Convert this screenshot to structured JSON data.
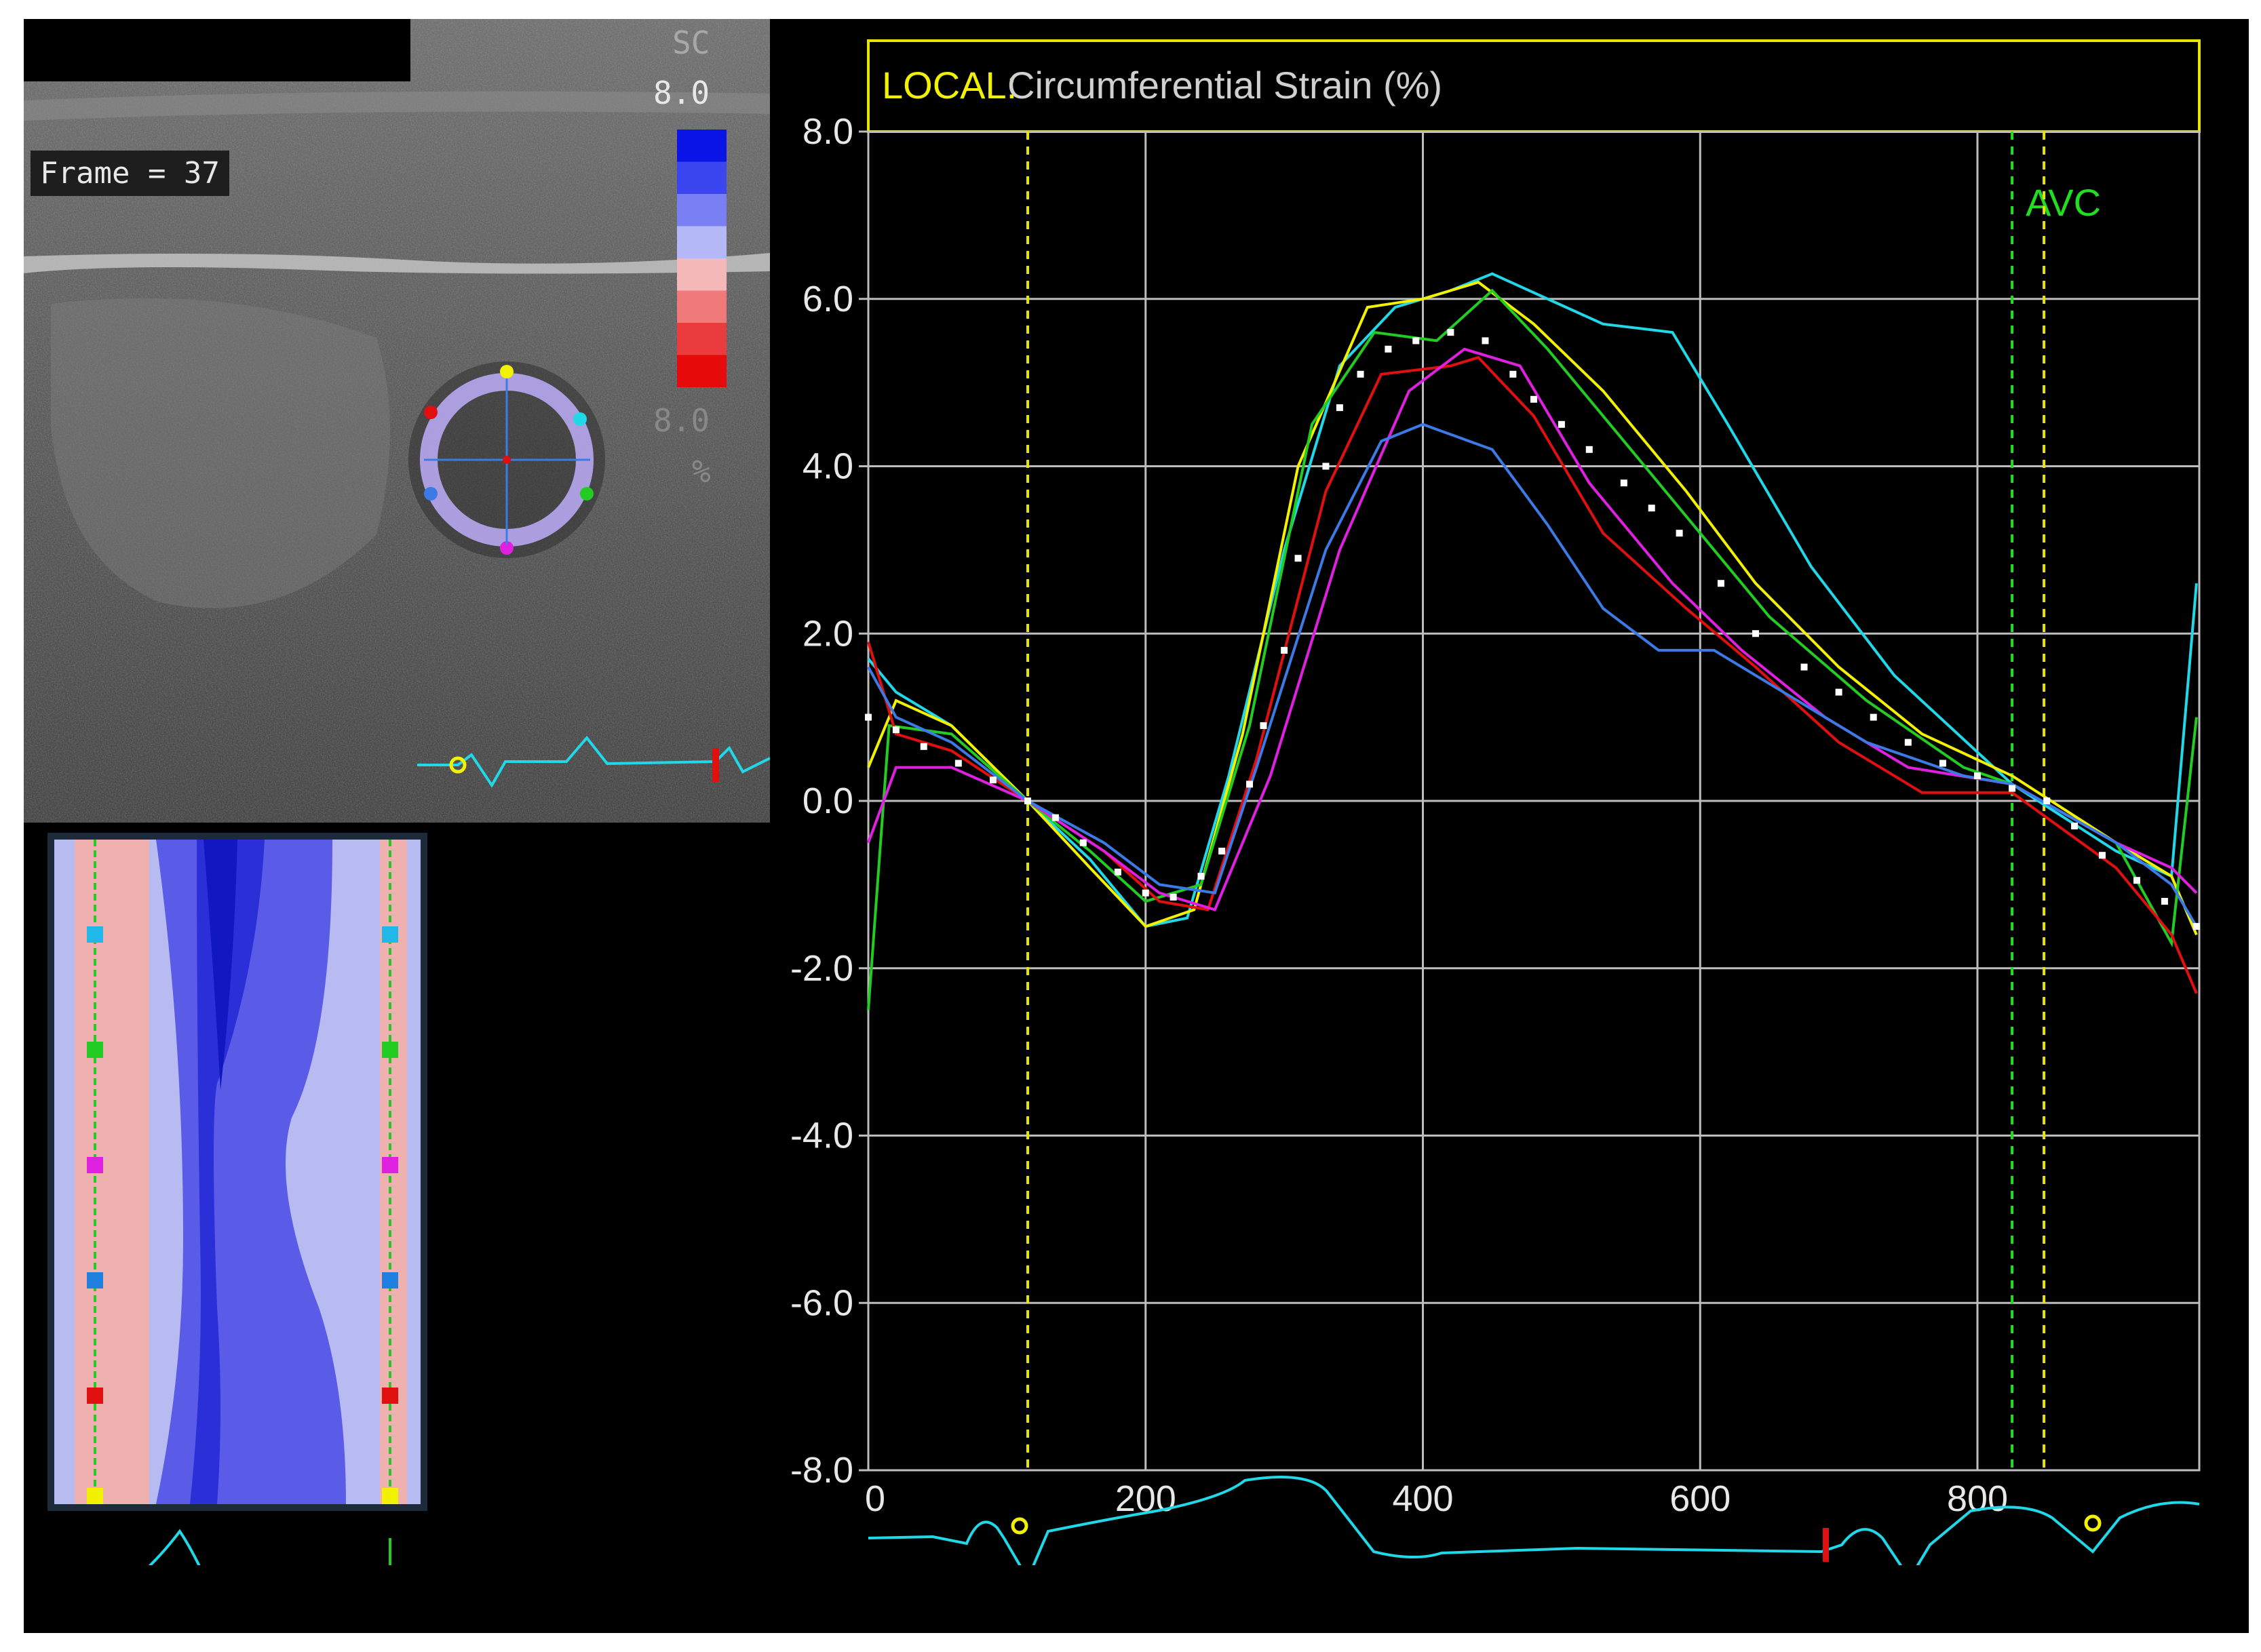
{
  "echo": {
    "sc_label": "SC",
    "scale_top": "8.0",
    "scale_bottom": "8.0",
    "unit": "%",
    "frame_label": "Frame = 37",
    "colorbar_colors": [
      "#0a14e6",
      "#3c46f0",
      "#7a80f4",
      "#b4b8f6",
      "#f4b8b8",
      "#f07a7a",
      "#ea3c3c",
      "#e60a0a"
    ]
  },
  "mmode": {
    "marker_colors_left": [
      "#20b8e8",
      "#22cc22",
      "#e020e0",
      "#2080e0",
      "#e01010",
      "#f2f200"
    ],
    "marker_colors_right": [
      "#20b8e8",
      "#22cc22",
      "#e020e0",
      "#2080e0",
      "#e01010",
      "#f2f200"
    ]
  },
  "chart_data": {
    "type": "line",
    "title_prefix": "LOCAL:",
    "title": "Circumferential Strain (%)",
    "xlim": [
      0,
      960
    ],
    "ylim": [
      -8,
      8
    ],
    "x_ticks": [
      0,
      200,
      400,
      600,
      800
    ],
    "x_tick_labels": [
      "0",
      "200",
      "400",
      "600",
      "800"
    ],
    "y_ticks": [
      8,
      6,
      4,
      2,
      0,
      -2,
      -4,
      -6,
      -8
    ],
    "y_tick_labels": [
      "8.0",
      "6.0",
      "4.0",
      "2.0",
      "0.0",
      "-2.0",
      "-4.0",
      "-6.0",
      "-8.0"
    ],
    "grid": true,
    "markers": [
      {
        "x": 115,
        "color": "#e6e600"
      },
      {
        "x": 825,
        "color": "#22dd22",
        "label": "AVC"
      },
      {
        "x": 848,
        "color": "#e6e600"
      }
    ],
    "series": [
      {
        "color": "#20d8e8",
        "style": "line",
        "points": [
          [
            0,
            1.7
          ],
          [
            20,
            1.3
          ],
          [
            60,
            0.9
          ],
          [
            115,
            0
          ],
          [
            160,
            -0.7
          ],
          [
            200,
            -1.5
          ],
          [
            230,
            -1.4
          ],
          [
            260,
            0.3
          ],
          [
            300,
            3.0
          ],
          [
            340,
            5.2
          ],
          [
            380,
            5.9
          ],
          [
            420,
            6.1
          ],
          [
            450,
            6.3
          ],
          [
            490,
            6.0
          ],
          [
            530,
            5.7
          ],
          [
            580,
            5.6
          ],
          [
            620,
            4.5
          ],
          [
            680,
            2.8
          ],
          [
            740,
            1.5
          ],
          [
            825,
            0.2
          ],
          [
            900,
            -0.6
          ],
          [
            940,
            -0.9
          ],
          [
            958,
            2.6
          ]
        ]
      },
      {
        "color": "#f2f200",
        "style": "line",
        "points": [
          [
            0,
            0.4
          ],
          [
            20,
            1.2
          ],
          [
            60,
            0.9
          ],
          [
            115,
            0
          ],
          [
            160,
            -0.8
          ],
          [
            200,
            -1.5
          ],
          [
            235,
            -1.3
          ],
          [
            270,
            0.8
          ],
          [
            310,
            4.0
          ],
          [
            360,
            5.9
          ],
          [
            400,
            6.0
          ],
          [
            440,
            6.2
          ],
          [
            480,
            5.7
          ],
          [
            530,
            4.9
          ],
          [
            590,
            3.7
          ],
          [
            640,
            2.6
          ],
          [
            700,
            1.6
          ],
          [
            760,
            0.8
          ],
          [
            825,
            0.3
          ],
          [
            900,
            -0.5
          ],
          [
            940,
            -0.9
          ],
          [
            958,
            -1.6
          ]
        ]
      },
      {
        "color": "#22cc22",
        "style": "line",
        "points": [
          [
            0,
            -2.5
          ],
          [
            15,
            0.9
          ],
          [
            60,
            0.8
          ],
          [
            115,
            0
          ],
          [
            160,
            -0.6
          ],
          [
            200,
            -1.2
          ],
          [
            240,
            -1.0
          ],
          [
            275,
            0.9
          ],
          [
            320,
            4.5
          ],
          [
            365,
            5.6
          ],
          [
            410,
            5.5
          ],
          [
            450,
            6.1
          ],
          [
            490,
            5.4
          ],
          [
            550,
            4.2
          ],
          [
            600,
            3.2
          ],
          [
            650,
            2.2
          ],
          [
            720,
            1.2
          ],
          [
            790,
            0.4
          ],
          [
            825,
            0.2
          ],
          [
            900,
            -0.5
          ],
          [
            940,
            -1.7
          ],
          [
            958,
            1.0
          ]
        ]
      },
      {
        "color": "#e01010",
        "style": "line",
        "points": [
          [
            0,
            1.9
          ],
          [
            20,
            0.8
          ],
          [
            60,
            0.6
          ],
          [
            115,
            0
          ],
          [
            170,
            -0.6
          ],
          [
            210,
            -1.2
          ],
          [
            245,
            -1.3
          ],
          [
            280,
            0.5
          ],
          [
            330,
            3.7
          ],
          [
            370,
            5.1
          ],
          [
            420,
            5.2
          ],
          [
            440,
            5.3
          ],
          [
            480,
            4.6
          ],
          [
            530,
            3.2
          ],
          [
            590,
            2.3
          ],
          [
            640,
            1.6
          ],
          [
            700,
            0.7
          ],
          [
            760,
            0.1
          ],
          [
            825,
            0.1
          ],
          [
            900,
            -0.8
          ],
          [
            940,
            -1.6
          ],
          [
            958,
            -2.3
          ]
        ]
      },
      {
        "color": "#e020e0",
        "style": "line",
        "points": [
          [
            0,
            -0.5
          ],
          [
            20,
            0.4
          ],
          [
            60,
            0.4
          ],
          [
            115,
            0
          ],
          [
            170,
            -0.6
          ],
          [
            210,
            -1.1
          ],
          [
            250,
            -1.3
          ],
          [
            290,
            0.3
          ],
          [
            340,
            3.0
          ],
          [
            390,
            4.9
          ],
          [
            430,
            5.4
          ],
          [
            470,
            5.2
          ],
          [
            520,
            3.8
          ],
          [
            580,
            2.6
          ],
          [
            630,
            1.8
          ],
          [
            690,
            1.0
          ],
          [
            750,
            0.4
          ],
          [
            825,
            0.2
          ],
          [
            900,
            -0.5
          ],
          [
            940,
            -0.8
          ],
          [
            958,
            -1.1
          ]
        ]
      },
      {
        "color": "#3c7ae6",
        "style": "line",
        "points": [
          [
            0,
            1.6
          ],
          [
            20,
            1.0
          ],
          [
            60,
            0.7
          ],
          [
            115,
            0
          ],
          [
            170,
            -0.5
          ],
          [
            210,
            -1.0
          ],
          [
            250,
            -1.1
          ],
          [
            280,
            0.4
          ],
          [
            330,
            3.0
          ],
          [
            370,
            4.3
          ],
          [
            400,
            4.5
          ],
          [
            450,
            4.2
          ],
          [
            490,
            3.3
          ],
          [
            530,
            2.3
          ],
          [
            570,
            1.8
          ],
          [
            610,
            1.8
          ],
          [
            660,
            1.3
          ],
          [
            720,
            0.7
          ],
          [
            790,
            0.3
          ],
          [
            825,
            0.2
          ],
          [
            900,
            -0.5
          ],
          [
            940,
            -1.0
          ],
          [
            958,
            -1.5
          ]
        ]
      },
      {
        "color": "#ffffff",
        "style": "dots",
        "points": [
          [
            0,
            1.0
          ],
          [
            20,
            0.85
          ],
          [
            40,
            0.65
          ],
          [
            65,
            0.45
          ],
          [
            90,
            0.25
          ],
          [
            115,
            0
          ],
          [
            135,
            -0.2
          ],
          [
            155,
            -0.5
          ],
          [
            180,
            -0.85
          ],
          [
            200,
            -1.1
          ],
          [
            220,
            -1.15
          ],
          [
            240,
            -0.9
          ],
          [
            255,
            -0.6
          ],
          [
            275,
            0.2
          ],
          [
            285,
            0.9
          ],
          [
            300,
            1.8
          ],
          [
            310,
            2.9
          ],
          [
            330,
            4.0
          ],
          [
            340,
            4.7
          ],
          [
            355,
            5.1
          ],
          [
            375,
            5.4
          ],
          [
            395,
            5.5
          ],
          [
            420,
            5.6
          ],
          [
            445,
            5.5
          ],
          [
            465,
            5.1
          ],
          [
            480,
            4.8
          ],
          [
            500,
            4.5
          ],
          [
            520,
            4.2
          ],
          [
            545,
            3.8
          ],
          [
            565,
            3.5
          ],
          [
            585,
            3.2
          ],
          [
            615,
            2.6
          ],
          [
            640,
            2.0
          ],
          [
            675,
            1.6
          ],
          [
            700,
            1.3
          ],
          [
            725,
            1.0
          ],
          [
            750,
            0.7
          ],
          [
            775,
            0.45
          ],
          [
            800,
            0.3
          ],
          [
            825,
            0.15
          ],
          [
            850,
            0.0
          ],
          [
            870,
            -0.3
          ],
          [
            890,
            -0.65
          ],
          [
            915,
            -0.95
          ],
          [
            935,
            -1.2
          ],
          [
            958,
            -1.5
          ]
        ]
      }
    ]
  }
}
